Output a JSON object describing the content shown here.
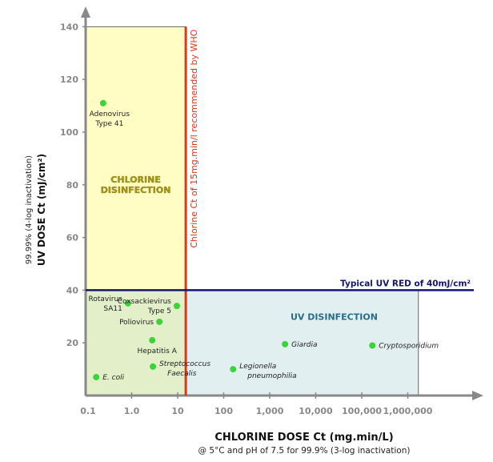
{
  "chart_data": {
    "type": "scatter",
    "xscale": "log",
    "xlabel": "CHLORINE DOSE Ct (mg.min/L)",
    "xsublabel": "@ 5°C and pH of 7.5 for 99.9% (3-log inactivation)",
    "ylabel": "UV DOSE Ct (mJ/cm²)",
    "ysublabel": "99.99% (4-log inactivation)",
    "xlim": [
      0.1,
      10000000
    ],
    "ylim": [
      0,
      140
    ],
    "xticks": [
      {
        "v": 0.1,
        "label": "0.1"
      },
      {
        "v": 1,
        "label": "1.0"
      },
      {
        "v": 10,
        "label": "10"
      },
      {
        "v": 100,
        "label": "100"
      },
      {
        "v": 1000,
        "label": "1,000"
      },
      {
        "v": 10000,
        "label": "10,000"
      },
      {
        "v": 100000,
        "label": "100,000"
      },
      {
        "v": 1000000,
        "label": "1,000,000"
      }
    ],
    "yticks": [
      20,
      40,
      60,
      80,
      100,
      120,
      140
    ],
    "regions": [
      {
        "label": "CHLORINE DISINFECTION",
        "x": [
          0.1,
          15
        ],
        "y": [
          40,
          140
        ],
        "color": "#fffcc4"
      },
      {
        "label": "",
        "x": [
          0.1,
          15
        ],
        "y": [
          0,
          40
        ],
        "color": "#e3efc9"
      },
      {
        "label": "UV DISINFECTION",
        "x": [
          15,
          1700000
        ],
        "y": [
          0,
          40
        ],
        "color": "#e2eff0"
      }
    ],
    "reference_lines": [
      {
        "orientation": "vertical",
        "x": 15,
        "label": "Chlorine Ct of 15mg.min/l recommended by WHO",
        "color": "#d9381e"
      },
      {
        "orientation": "horizontal",
        "y": 40,
        "label": "Typical UV RED of 40mJ/cm²",
        "color": "#14166b"
      }
    ],
    "point_color": "#3ad43a",
    "points": [
      {
        "name": "Adenovirus Type 41",
        "lines": [
          "Adenovirus",
          "Type 41"
        ],
        "x": 0.24,
        "y": 111,
        "italic": false,
        "pos": "below"
      },
      {
        "name": "Rotavirus SA11",
        "lines": [
          "Rotavirus",
          "SA11"
        ],
        "x": 0.83,
        "y": 35,
        "italic": false,
        "pos": "left"
      },
      {
        "name": "Coxsackievirus Type 5",
        "lines": [
          "Coxsackievirus",
          "Type 5"
        ],
        "x": 9.6,
        "y": 34,
        "italic": false,
        "pos": "left"
      },
      {
        "name": "Poliovirus",
        "lines": [
          "Poliovirus"
        ],
        "x": 4,
        "y": 28,
        "italic": false,
        "pos": "left"
      },
      {
        "name": "Hepatitis A",
        "lines": [
          "Hepatitis A"
        ],
        "x": 2.8,
        "y": 21,
        "italic": false,
        "pos": "below"
      },
      {
        "name": "Streptococcus Faecalis",
        "lines": [
          "Streptococcus",
          "Faecalis"
        ],
        "x": 2.9,
        "y": 11,
        "italic": true,
        "pos": "right"
      },
      {
        "name": "E. coli",
        "lines": [
          "E. coli"
        ],
        "x": 0.17,
        "y": 7,
        "italic": true,
        "pos": "right"
      },
      {
        "name": "Legionella pneumophilia",
        "lines": [
          "Legionella",
          "pneumophilia"
        ],
        "x": 160,
        "y": 10,
        "italic": true,
        "pos": "right"
      },
      {
        "name": "Giardia",
        "lines": [
          "Giardia"
        ],
        "x": 2150,
        "y": 19.5,
        "italic": true,
        "pos": "right"
      },
      {
        "name": "Cryptosporidium",
        "lines": [
          "Cryptosporidium"
        ],
        "x": 170000,
        "y": 19,
        "italic": true,
        "pos": "right"
      }
    ]
  }
}
